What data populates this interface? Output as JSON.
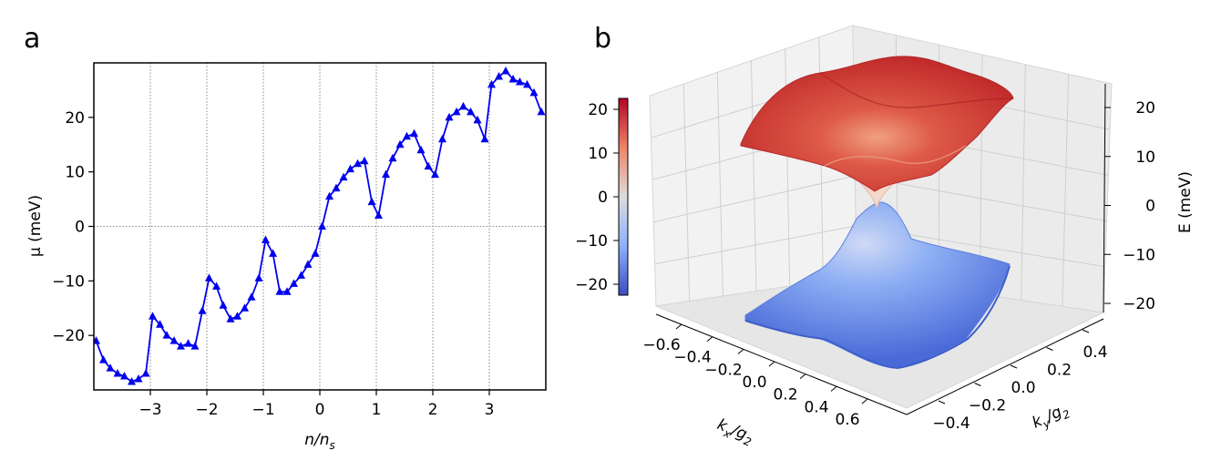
{
  "chart_data": [
    {
      "type": "line",
      "panel_label": "a",
      "xlabel": "n/n",
      "xlabel_sub": "s",
      "ylabel": "μ (meV)",
      "xlim": [
        -4.0,
        4.0
      ],
      "ylim": [
        -30,
        30
      ],
      "xticks": [
        -3,
        -2,
        -1,
        0,
        1,
        2,
        3
      ],
      "xtick_labels": [
        "−3",
        "−2",
        "−1",
        "0",
        "1",
        "2",
        "3"
      ],
      "yticks": [
        -20,
        -10,
        0,
        10,
        20
      ],
      "ytick_labels": [
        "−20",
        "−10",
        "0",
        "10",
        "20"
      ],
      "grid": "dotted at x ticks and y = 0",
      "marker": "triangle-up",
      "color": "#0000ee",
      "series": [
        {
          "x": [
            -3.96,
            -3.83,
            -3.71,
            -3.58,
            -3.46,
            -3.33,
            -3.21,
            -3.08,
            -2.96,
            -2.83,
            -2.71,
            -2.58,
            -2.46,
            -2.33,
            -2.21,
            -2.08,
            -1.96,
            -1.83,
            -1.71,
            -1.58,
            -1.46,
            -1.33,
            -1.21,
            -1.08,
            -0.96,
            -0.83,
            -0.71,
            -0.58,
            -0.46,
            -0.33,
            -0.21,
            -0.08,
            0.04,
            0.17,
            0.29,
            0.42,
            0.54,
            0.67,
            0.79,
            0.92,
            1.04,
            1.17,
            1.29,
            1.42,
            1.54,
            1.67,
            1.79,
            1.92,
            2.04,
            2.17,
            2.29,
            2.42,
            2.54,
            2.67,
            2.79,
            2.92,
            3.04,
            3.17,
            3.29,
            3.42,
            3.54,
            3.67,
            3.79,
            3.92
          ],
          "y": [
            -21,
            -24.5,
            -26,
            -27,
            -27.5,
            -28.5,
            -28,
            -27,
            -16.5,
            -18,
            -20,
            -21,
            -22,
            -21.5,
            -22,
            -15.5,
            -9.5,
            -11,
            -14.5,
            -17,
            -16.5,
            -15,
            -13,
            -9.5,
            -2.5,
            -5,
            -12,
            -12,
            -10.5,
            -9,
            -7,
            -5,
            0,
            5.5,
            7,
            9,
            10.5,
            11.5,
            12,
            4.5,
            2,
            9.5,
            12.5,
            15,
            16.5,
            17,
            14,
            11,
            9.5,
            16,
            20,
            21,
            22,
            21,
            19.5,
            16,
            26,
            27.5,
            28.5,
            27,
            26.5,
            26,
            24.5,
            21
          ]
        }
      ]
    },
    {
      "type": "surface3d",
      "panel_label": "b",
      "xlabel": "k",
      "xlabel_sub": "x",
      "xlabel_rest": "/g",
      "xlabel_rest_sub": "2",
      "ylabel": "k",
      "ylabel_sub": "y",
      "ylabel_rest": "/g",
      "ylabel_rest_sub": "2",
      "zlabel": "E (meV)",
      "xtick_labels": [
        "−0.6",
        "−0.4",
        "−0.2",
        "0.0",
        "0.2",
        "0.4",
        "0.6"
      ],
      "ytick_labels": [
        "−0.4",
        "−0.2",
        "0.0",
        "0.2",
        "0.4"
      ],
      "ztick_labels": [
        "−20",
        "−10",
        "0",
        "10",
        "20"
      ],
      "zlim": [
        -22,
        22
      ],
      "colormap": "coolwarm",
      "colorbar_ticks": [
        "20",
        "10",
        "0",
        "−10",
        "−20"
      ],
      "bands": [
        {
          "name_hidden": true,
          "mean_energy": 18,
          "color": "#c1272d"
        },
        {
          "name_hidden": true,
          "mean_energy": -18,
          "color": "#4a71d8"
        }
      ]
    }
  ]
}
